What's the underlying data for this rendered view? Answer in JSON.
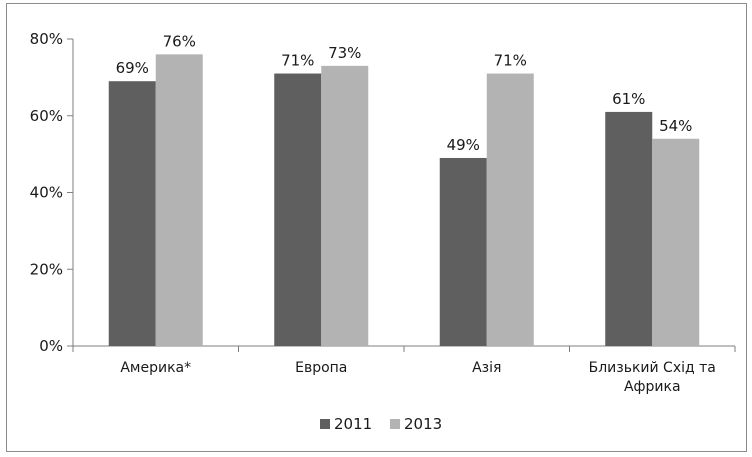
{
  "chart_data": {
    "type": "bar",
    "categories": [
      "Америка*",
      "Европа",
      "Азія",
      "Близький Схід та Африка"
    ],
    "category_lines": [
      [
        "Америка*"
      ],
      [
        "Европа"
      ],
      [
        "Азія"
      ],
      [
        "Близький Схід та",
        "Африка"
      ]
    ],
    "series": [
      {
        "name": "2011",
        "values": [
          69,
          71,
          49,
          61
        ],
        "labels": [
          "69%",
          "71%",
          "49%",
          "61%"
        ],
        "color": "#5f5f5f"
      },
      {
        "name": "2013",
        "values": [
          76,
          73,
          71,
          54
        ],
        "labels": [
          "76%",
          "73%",
          "71%",
          "54%"
        ],
        "color": "#b3b3b3"
      }
    ],
    "yticks": [
      0,
      20,
      40,
      60,
      80
    ],
    "ytick_labels": [
      "0%",
      "20%",
      "40%",
      "60%",
      "80%"
    ],
    "ylim": [
      0,
      80
    ],
    "grid": false,
    "legend_position": "bottom",
    "title": "",
    "xlabel": "",
    "ylabel": ""
  }
}
